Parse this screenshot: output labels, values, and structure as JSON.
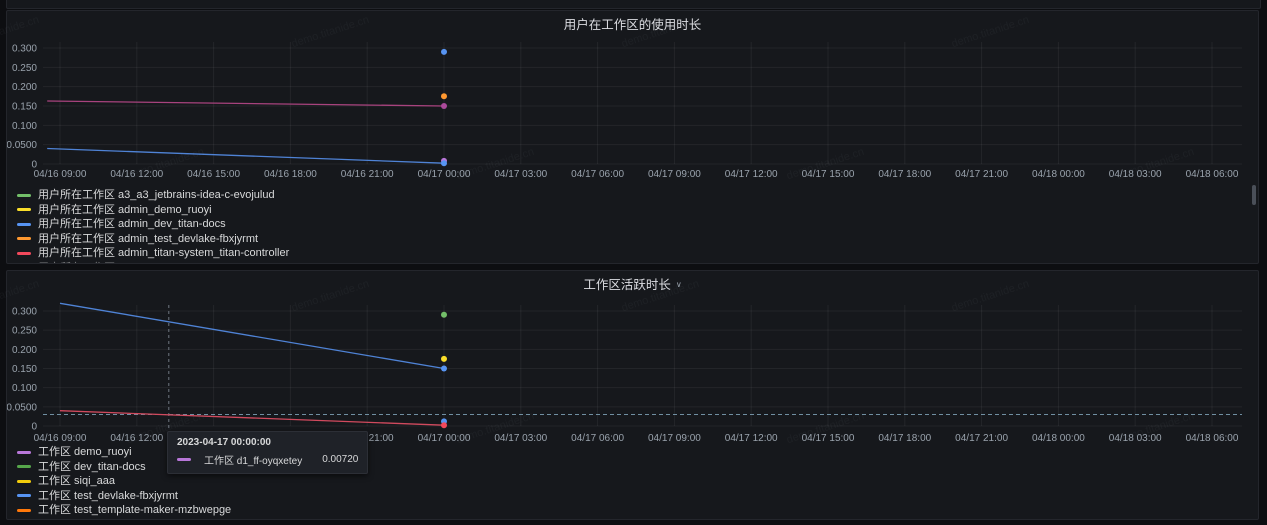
{
  "page": {
    "watermark": "demo.titanide.cn"
  },
  "panels": [
    {
      "title": "用户在工作区的使用时长",
      "has_dropdown": false,
      "legend": [
        {
          "color": "#73bf69",
          "label": "用户所在工作区 a3_a3_jetbrains-idea-c-evojulud"
        },
        {
          "color": "#fade2a",
          "label": "用户所在工作区 admin_demo_ruoyi"
        },
        {
          "color": "#5794f2",
          "label": "用户所在工作区 admin_dev_titan-docs"
        },
        {
          "color": "#ff9830",
          "label": "用户所在工作区 admin_test_devlake-fbxjyrmt"
        },
        {
          "color": "#f2495c",
          "label": "用户所在工作区 admin_titan-system_titan-controller"
        },
        {
          "color": "transparent",
          "label": "用户所在工作区",
          "clipped": true
        }
      ]
    },
    {
      "title": "工作区活跃时长",
      "has_dropdown": true,
      "dropdown_icon": "∨",
      "legend": [
        {
          "color": "#b877d9",
          "label": "工作区 demo_ruoyi"
        },
        {
          "color": "#56a64b",
          "label": "工作区 dev_titan-docs"
        },
        {
          "color": "#f2cc0c",
          "label": "工作区 siqi_aaa"
        },
        {
          "color": "#5794f2",
          "label": "工作区 test_devlake-fbxjyrmt"
        },
        {
          "color": "#ff780a",
          "label": "工作区 test_template-maker-mzbwepge"
        }
      ],
      "tooltip": {
        "time": "2023-04-17 00:00:00",
        "series": "工作区 d1_ff-oyqxetey",
        "value": "0.00720",
        "color": "#b877d9"
      }
    }
  ],
  "chart_data": [
    {
      "type": "line",
      "title": "用户在工作区的使用时长",
      "x_ticks": [
        "04/16 09:00",
        "04/16 12:00",
        "04/16 15:00",
        "04/16 18:00",
        "04/16 21:00",
        "04/17 00:00",
        "04/17 03:00",
        "04/17 06:00",
        "04/17 09:00",
        "04/17 12:00",
        "04/17 15:00",
        "04/17 18:00",
        "04/17 21:00",
        "04/18 00:00",
        "04/18 03:00",
        "04/18 06:00"
      ],
      "y_ticks": [
        "0",
        "0.0500",
        "0.100",
        "0.150",
        "0.200",
        "0.250",
        "0.300"
      ],
      "ylim": [
        0,
        0.31
      ],
      "grid": true,
      "legend_position": "bottom",
      "series": [
        {
          "name": "magenta-line",
          "color": "#a8437e",
          "points": [
            [
              "04/16 08:30",
              0.163
            ],
            [
              "04/17 00:00",
              0.15
            ]
          ]
        },
        {
          "name": "blue-line",
          "color": "#4f83d6",
          "points": [
            [
              "04/16 08:30",
              0.04
            ],
            [
              "04/17 00:00",
              0.002
            ]
          ]
        }
      ],
      "markers": [
        {
          "t": "04/17 00:00",
          "v": 0.29,
          "color": "#5794f2"
        },
        {
          "t": "04/17 00:00",
          "v": 0.175,
          "color": "#ff9830"
        },
        {
          "t": "04/17 00:00",
          "v": 0.15,
          "color": "#ab4a9b"
        },
        {
          "t": "04/17 00:00",
          "v": 0.008,
          "color": "#b877d9"
        },
        {
          "t": "04/17 00:00",
          "v": 0.002,
          "color": "#5794f2"
        }
      ]
    },
    {
      "type": "line",
      "title": "工作区活跃时长",
      "x_ticks": [
        "04/16 09:00",
        "04/16 12:00",
        "04/16 15:00",
        "04/16 18:00",
        "04/16 21:00",
        "04/17 00:00",
        "04/17 03:00",
        "04/17 06:00",
        "04/17 09:00",
        "04/17 12:00",
        "04/17 15:00",
        "04/17 18:00",
        "04/17 21:00",
        "04/18 00:00",
        "04/18 03:00",
        "04/18 06:00"
      ],
      "y_ticks": [
        "0",
        "0.0500",
        "0.100",
        "0.150",
        "0.200",
        "0.250",
        "0.300"
      ],
      "ylim": [
        0,
        0.33
      ],
      "grid": true,
      "legend_position": "bottom",
      "series": [
        {
          "name": "blue-line",
          "color": "#4f83d6",
          "points": [
            [
              "04/16 09:00",
              0.32
            ],
            [
              "04/17 00:00",
              0.15
            ]
          ]
        },
        {
          "name": "red-line",
          "color": "#d14a5e",
          "points": [
            [
              "04/16 09:00",
              0.04
            ],
            [
              "04/17 00:00",
              0.002
            ]
          ]
        }
      ],
      "markers": [
        {
          "t": "04/17 00:00",
          "v": 0.29,
          "color": "#73bf69"
        },
        {
          "t": "04/17 00:00",
          "v": 0.175,
          "color": "#fade2a"
        },
        {
          "t": "04/17 00:00",
          "v": 0.15,
          "color": "#5794f2"
        },
        {
          "t": "04/17 00:00",
          "v": 0.012,
          "color": "#5794f2"
        },
        {
          "t": "04/17 00:00",
          "v": 0.002,
          "color": "#f2495c"
        }
      ],
      "threshold": {
        "v": 0.03,
        "color": "#8fb7cf"
      },
      "crosshair_t": "04/16 13:15"
    }
  ]
}
